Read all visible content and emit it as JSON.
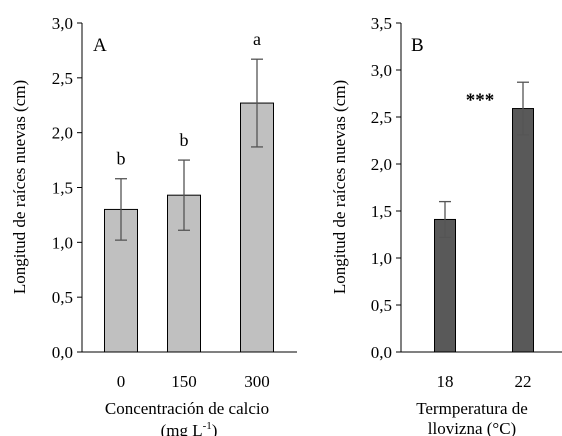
{
  "chart_data": [
    {
      "type": "bar",
      "panel_label": "A",
      "categories": [
        "0",
        "150",
        "300"
      ],
      "values": [
        1.3,
        1.43,
        2.27
      ],
      "errors": [
        0.28,
        0.32,
        0.4
      ],
      "annotations": [
        "b",
        "b",
        "a"
      ],
      "ylabel": "Longitud de raíces nuevas (cm)",
      "xlabel_line1": "Concentración de calcio",
      "xlabel_line2": "(mg L",
      "xlabel_sup": "-1",
      "xlabel_close": ")",
      "ylim": [
        0,
        3.0
      ],
      "yticks": [
        "0,0",
        "0,5",
        "1,0",
        "1,5",
        "2,0",
        "2,5",
        "3,0"
      ],
      "bar_color": "#c0c0c0",
      "grid": false
    },
    {
      "type": "bar",
      "panel_label": "B",
      "categories": [
        "18",
        "22"
      ],
      "values": [
        1.41,
        2.59
      ],
      "errors": [
        0.19,
        0.28
      ],
      "annotation": "***",
      "ylabel": "Longitud de raíces nuevas (cm)",
      "xlabel_line1": "Termperatura de",
      "xlabel_line2": "llovizna (°C)",
      "ylim": [
        0,
        3.5
      ],
      "yticks": [
        "0,0",
        "0,5",
        "1,0",
        "1,5",
        "2,0",
        "2,5",
        "3,0",
        "3,5"
      ],
      "bar_color": "#595959",
      "grid": false
    }
  ]
}
